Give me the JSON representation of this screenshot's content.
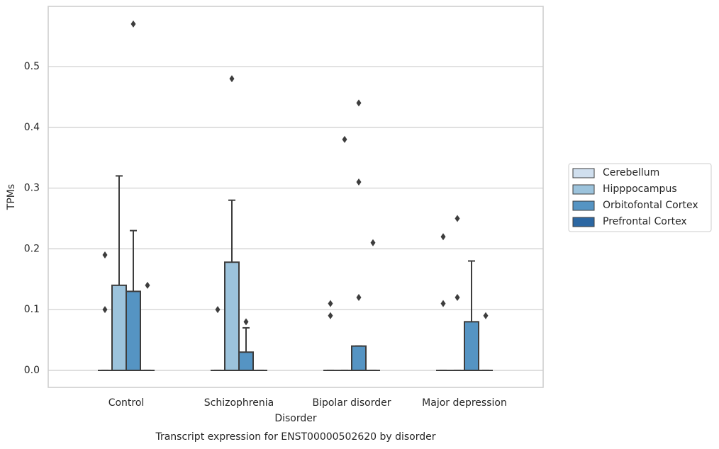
{
  "chart_data": {
    "type": "box",
    "title": "Transcript expression for ENST00000502620 by disorder",
    "x_label": "Disorder",
    "y_label": "TPMs",
    "categories": [
      "Control",
      "Schizophrenia",
      "Bipolar disorder",
      "Major depression"
    ],
    "ylim": [
      -0.028,
      0.599
    ],
    "yticks": [
      {
        "value": 0,
        "label": "0.0"
      },
      0.1,
      0.2,
      0.3,
      0.4,
      0.5
    ],
    "grid": true,
    "legend": "right",
    "series": [
      {
        "name": "Cerebellum",
        "color": "#d0dfee",
        "boxes": [
          {
            "q1": 0,
            "median": 0,
            "q3": 0,
            "whislo": 0,
            "whishi": 0,
            "fliers": [
              0.19,
              0.1
            ]
          },
          {
            "q1": 0,
            "median": 0,
            "q3": 0,
            "whislo": 0,
            "whishi": 0,
            "fliers": [
              0.1
            ]
          },
          {
            "q1": 0,
            "median": 0,
            "q3": 0,
            "whislo": 0,
            "whishi": 0,
            "fliers": [
              0.11,
              0.09
            ]
          },
          {
            "q1": 0,
            "median": 0,
            "q3": 0,
            "whislo": 0,
            "whishi": 0,
            "fliers": [
              0.22,
              0.11
            ]
          }
        ]
      },
      {
        "name": "Hipppocampus",
        "color": "#9cc3dc",
        "boxes": [
          {
            "q1": 0,
            "median": 0,
            "q3": 0.14,
            "whislo": 0,
            "whishi": 0.32,
            "fliers": []
          },
          {
            "q1": 0,
            "median": 0,
            "q3": 0.178,
            "whislo": 0,
            "whishi": 0.28,
            "fliers": [
              0.48
            ]
          },
          {
            "q1": 0,
            "median": 0,
            "q3": 0,
            "whislo": 0,
            "whishi": 0,
            "fliers": [
              0.38
            ]
          },
          {
            "q1": 0,
            "median": 0,
            "q3": 0,
            "whislo": 0,
            "whishi": 0,
            "fliers": [
              0.25,
              0.12
            ]
          }
        ]
      },
      {
        "name": "Orbitofontal Cortex",
        "color": "#5594c3",
        "boxes": [
          {
            "q1": 0,
            "median": 0,
            "q3": 0.13,
            "whislo": 0,
            "whishi": 0.23,
            "fliers": [
              0.57
            ]
          },
          {
            "q1": 0,
            "median": 0,
            "q3": 0.03,
            "whislo": 0,
            "whishi": 0.07,
            "fliers": [
              0.08
            ]
          },
          {
            "q1": 0,
            "median": 0,
            "q3": 0.04,
            "whislo": 0,
            "whishi": 0.04,
            "fliers": [
              0.44,
              0.31,
              0.12
            ]
          },
          {
            "q1": 0,
            "median": 0,
            "q3": 0.08,
            "whislo": 0,
            "whishi": 0.18,
            "fliers": []
          }
        ]
      },
      {
        "name": "Prefrontal Cortex",
        "color": "#2c67a2",
        "boxes": [
          {
            "q1": 0,
            "median": 0,
            "q3": 0,
            "whislo": 0,
            "whishi": 0,
            "fliers": [
              0.14
            ]
          },
          {
            "q1": 0,
            "median": 0,
            "q3": 0,
            "whislo": 0,
            "whishi": 0,
            "fliers": []
          },
          {
            "q1": 0,
            "median": 0,
            "q3": 0,
            "whislo": 0,
            "whishi": 0,
            "fliers": [
              0.21
            ]
          },
          {
            "q1": 0,
            "median": 0,
            "q3": 0,
            "whislo": 0,
            "whishi": 0,
            "fliers": [
              0.09
            ]
          }
        ]
      }
    ]
  }
}
